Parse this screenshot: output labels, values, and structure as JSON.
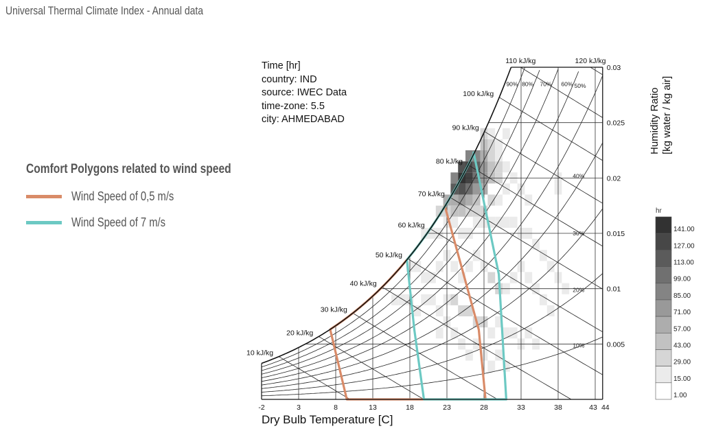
{
  "page_title": "Universal Thermal Climate Index - Annual data",
  "legend": {
    "title": "Comfort Polygons related to wind speed",
    "items": [
      {
        "label": "Wind Speed of 0,5 m/s",
        "color": "#d98b68"
      },
      {
        "label": "Wind Speed of 7 m/s",
        "color": "#6cc9c3"
      }
    ]
  },
  "meta": {
    "lines": [
      "Time [hr]",
      "country: IND",
      "source: IWEC Data",
      "time-zone: 5.5",
      "city: AHMEDABAD"
    ]
  },
  "chart_data": {
    "type": "heatmap",
    "subtype": "psychrometric",
    "xlabel": "Dry Bulb Temperature [C]",
    "ylabel": "Humidity Ratio\n[kg water / kg air]",
    "ylabel_lines": [
      "Humidity Ratio",
      "[kg water / kg air]"
    ],
    "xlim": [
      -2,
      44
    ],
    "ylim": [
      0,
      0.03
    ],
    "x_ticks": [
      -2,
      3,
      8,
      13,
      18,
      23,
      28,
      33,
      38,
      43,
      44
    ],
    "x_tick_labels": [
      "-2",
      "3",
      "8",
      "13",
      "18",
      "23",
      "28",
      "33",
      "38",
      "43",
      "44"
    ],
    "y_ticks": [
      0.005,
      0.01,
      0.015,
      0.02,
      0.025,
      0.03
    ],
    "y_tick_labels": [
      "0.005",
      "0.01",
      "0.015",
      "0.02",
      "0.025",
      "0.03"
    ],
    "enthalpy_lines": [
      10,
      20,
      30,
      40,
      50,
      60,
      70,
      80,
      90,
      100,
      110,
      120
    ],
    "enthalpy_labels": [
      "10 kJ/kg",
      "20 kJ/kg",
      "30 kJ/kg",
      "40 kJ/kg",
      "50 kJ/kg",
      "60 kJ/kg",
      "70 kJ/kg",
      "80 kJ/kg",
      "90 kJ/kg",
      "100 kJ/kg",
      "110 kJ/kg",
      "120 kJ/kg"
    ],
    "rh_lines": [
      10,
      20,
      30,
      40,
      50,
      60,
      70,
      80,
      90
    ],
    "rh_labels": [
      "10%",
      "20%",
      "30%",
      "40%",
      "50%",
      "60%",
      "70%",
      "80%",
      "90%"
    ],
    "colorbar": {
      "unit": "hr",
      "values": [
        141,
        127,
        113,
        99,
        85,
        71,
        57,
        43,
        29,
        15,
        1
      ],
      "labels": [
        "141.00",
        "127.00",
        "113.00",
        "99.00",
        "85.00",
        "71.00",
        "57.00",
        "43.00",
        "29.00",
        "15.00",
        "1.00"
      ]
    },
    "cells_format": "[dry_bulb_C, humidity_ratio, hours]",
    "cells": [
      [
        25,
        0.02,
        141
      ],
      [
        26,
        0.02,
        130
      ],
      [
        25,
        0.021,
        120
      ],
      [
        26,
        0.021,
        127
      ],
      [
        27,
        0.021,
        110
      ],
      [
        24,
        0.019,
        113
      ],
      [
        25,
        0.019,
        120
      ],
      [
        26,
        0.019,
        99
      ],
      [
        27,
        0.02,
        99
      ],
      [
        27,
        0.022,
        85
      ],
      [
        24,
        0.02,
        85
      ],
      [
        28,
        0.021,
        71
      ],
      [
        28,
        0.02,
        71
      ],
      [
        26,
        0.022,
        85
      ],
      [
        27,
        0.019,
        71
      ],
      [
        28,
        0.019,
        57
      ],
      [
        28,
        0.022,
        57
      ],
      [
        29,
        0.021,
        43
      ],
      [
        29,
        0.02,
        43
      ],
      [
        23,
        0.018,
        57
      ],
      [
        24,
        0.018,
        57
      ],
      [
        25,
        0.018,
        71
      ],
      [
        26,
        0.018,
        57
      ],
      [
        27,
        0.018,
        43
      ],
      [
        28,
        0.023,
        43
      ],
      [
        29,
        0.022,
        29
      ],
      [
        30,
        0.021,
        29
      ],
      [
        30,
        0.02,
        29
      ],
      [
        29,
        0.023,
        29
      ],
      [
        30,
        0.022,
        15
      ],
      [
        22,
        0.017,
        29
      ],
      [
        23,
        0.017,
        29
      ],
      [
        24,
        0.017,
        43
      ],
      [
        25,
        0.017,
        43
      ],
      [
        26,
        0.017,
        29
      ],
      [
        27,
        0.017,
        29
      ],
      [
        28,
        0.017,
        29
      ],
      [
        29,
        0.018,
        29
      ],
      [
        30,
        0.018,
        15
      ],
      [
        31,
        0.019,
        15
      ],
      [
        28,
        0.024,
        29
      ],
      [
        29,
        0.024,
        15
      ],
      [
        30,
        0.023,
        15
      ],
      [
        31,
        0.021,
        15
      ],
      [
        32,
        0.02,
        15
      ],
      [
        33,
        0.019,
        15
      ],
      [
        34,
        0.018,
        15
      ],
      [
        38,
        0.019,
        15
      ],
      [
        38,
        0.02,
        15
      ],
      [
        31,
        0.024,
        15
      ],
      [
        20,
        0.015,
        15
      ],
      [
        21,
        0.015,
        15
      ],
      [
        22,
        0.015,
        15
      ],
      [
        23,
        0.016,
        15
      ],
      [
        24,
        0.016,
        15
      ],
      [
        25,
        0.015,
        15
      ],
      [
        26,
        0.015,
        15
      ],
      [
        27,
        0.016,
        15
      ],
      [
        28,
        0.016,
        15
      ],
      [
        29,
        0.016,
        15
      ],
      [
        30,
        0.016,
        15
      ],
      [
        31,
        0.016,
        15
      ],
      [
        32,
        0.016,
        15
      ],
      [
        33,
        0.015,
        15
      ],
      [
        34,
        0.015,
        15
      ],
      [
        35,
        0.014,
        15
      ],
      [
        36,
        0.013,
        15
      ],
      [
        37,
        0.012,
        15
      ],
      [
        38,
        0.011,
        15
      ],
      [
        39,
        0.01,
        15
      ],
      [
        18,
        0.012,
        15
      ],
      [
        19,
        0.012,
        15
      ],
      [
        20,
        0.011,
        15
      ],
      [
        21,
        0.011,
        15
      ],
      [
        22,
        0.012,
        15
      ],
      [
        23,
        0.013,
        15
      ],
      [
        24,
        0.012,
        15
      ],
      [
        25,
        0.011,
        15
      ],
      [
        26,
        0.012,
        15
      ],
      [
        27,
        0.013,
        15
      ],
      [
        28,
        0.012,
        15
      ],
      [
        29,
        0.011,
        29
      ],
      [
        30,
        0.01,
        29
      ],
      [
        31,
        0.01,
        15
      ],
      [
        32,
        0.011,
        15
      ],
      [
        33,
        0.012,
        15
      ],
      [
        34,
        0.011,
        15
      ],
      [
        35,
        0.01,
        15
      ],
      [
        36,
        0.009,
        15
      ],
      [
        37,
        0.008,
        15
      ],
      [
        16,
        0.009,
        15
      ],
      [
        17,
        0.009,
        15
      ],
      [
        18,
        0.009,
        15
      ],
      [
        19,
        0.008,
        15
      ],
      [
        20,
        0.009,
        15
      ],
      [
        21,
        0.009,
        15
      ],
      [
        22,
        0.008,
        15
      ],
      [
        23,
        0.009,
        15
      ],
      [
        24,
        0.009,
        29
      ],
      [
        25,
        0.008,
        29
      ],
      [
        26,
        0.008,
        29
      ],
      [
        27,
        0.007,
        29
      ],
      [
        28,
        0.007,
        29
      ],
      [
        29,
        0.006,
        15
      ],
      [
        30,
        0.007,
        15
      ],
      [
        31,
        0.006,
        15
      ],
      [
        32,
        0.006,
        15
      ],
      [
        33,
        0.005,
        15
      ],
      [
        34,
        0.006,
        15
      ],
      [
        35,
        0.005,
        15
      ],
      [
        26,
        0.004,
        15
      ],
      [
        27,
        0.005,
        15
      ],
      [
        28,
        0.004,
        15
      ],
      [
        29,
        0.003,
        15
      ],
      [
        30,
        0.004,
        15
      ],
      [
        31,
        0.003,
        15
      ],
      [
        24,
        0.006,
        15
      ],
      [
        25,
        0.005,
        15
      ],
      [
        23,
        0.007,
        15
      ],
      [
        22,
        0.006,
        15
      ],
      [
        38,
        0.015,
        1
      ],
      [
        39,
        0.014,
        1
      ],
      [
        40,
        0.013,
        1
      ],
      [
        41,
        0.012,
        1
      ],
      [
        40,
        0.016,
        1
      ],
      [
        41,
        0.015,
        1
      ],
      [
        42,
        0.014,
        1
      ],
      [
        37,
        0.017,
        1
      ],
      [
        36,
        0.016,
        1
      ],
      [
        35,
        0.017,
        1
      ]
    ],
    "comfort_polygons": [
      {
        "name": "Wind Speed of 0,5 m/s",
        "color": "#d98b68",
        "points": [
          [
            9.5,
            0
          ],
          [
            7.3,
            0.0062
          ],
          "sat",
          [
            22.7,
            0.0175
          ],
          [
            27.3,
            0.0063
          ],
          [
            28.2,
            0
          ]
        ]
      },
      {
        "name": "Wind Speed of 7 m/s",
        "color": "#6cc9c3",
        "points": [
          [
            19.9,
            0
          ],
          [
            18.6,
            0.0063
          ],
          [
            17.6,
            0.0126
          ],
          "sat",
          [
            26.6,
            0.0223
          ],
          [
            30.0,
            0.0113
          ],
          [
            31.0,
            0
          ]
        ]
      }
    ]
  }
}
